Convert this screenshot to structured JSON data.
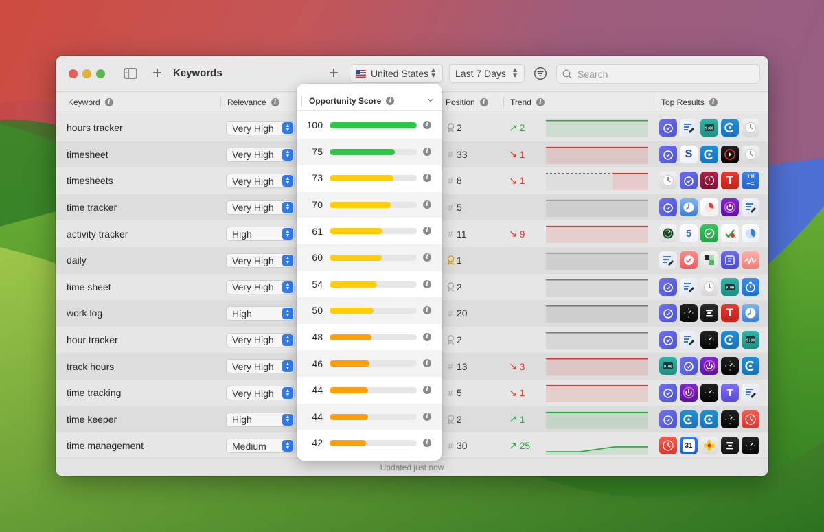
{
  "toolbar": {
    "title": "Keywords",
    "country": "United States",
    "date_range": "Last 7 Days",
    "search_placeholder": "Search"
  },
  "columns": {
    "keyword": "Keyword",
    "relevance": "Relevance",
    "opportunity": "Opportunity Score",
    "position": "Position",
    "trend": "Trend",
    "top_results": "Top Results"
  },
  "colors": {
    "score_high": "#30c748",
    "score_mid": "#ffcd0a",
    "score_low": "#ff9f0a",
    "trend_up": "#2aa742",
    "trend_down": "#e0352b",
    "accent": "#2f7df6"
  },
  "rows": [
    {
      "keyword": "hours tracker",
      "relevance": "Very High",
      "score": "100",
      "score_value": 100,
      "rank_mark": "ribbon",
      "position": "2",
      "trend": "2",
      "trend_dir": "up",
      "spark": {
        "color": "#2aa742",
        "points": [
          0.1,
          0.1,
          0.1,
          0.1
        ]
      },
      "icons": [
        "timer-heart-icon",
        "timesheet-edit-icon",
        "teal-clock-icon",
        "clockify-icon",
        "analog-clock-icon"
      ]
    },
    {
      "keyword": "timesheet",
      "relevance": "Very High",
      "score": "75",
      "score_value": 75,
      "rank_mark": "hash",
      "position": "33",
      "trend": "1",
      "trend_dir": "down",
      "spark": {
        "color": "#e0352b",
        "points": [
          0.1,
          0.1,
          0.1,
          0.1
        ]
      },
      "icons": [
        "timer-heart-icon",
        "hourly-s-icon",
        "clockify-icon",
        "black-play-clock-icon",
        "analog-clock-icon"
      ]
    },
    {
      "keyword": "timesheets",
      "relevance": "Very High",
      "score": "73",
      "score_value": 73,
      "rank_mark": "hash",
      "position": "8",
      "trend": "1",
      "trend_dir": "down",
      "spark": {
        "color": "#e0352b",
        "points": [
          0.1,
          0.1,
          0.1,
          0.1
        ],
        "dashed_until": 0.65
      },
      "icons": [
        "analog-clock-icon",
        "timer-heart-icon",
        "red-clock-icon",
        "t-letter-icon",
        "calculator-icon"
      ]
    },
    {
      "keyword": "time tracker",
      "relevance": "Very High",
      "score": "70",
      "score_value": 70,
      "rank_mark": "hash",
      "position": "5",
      "trend": "",
      "trend_dir": "",
      "spark": {
        "color": "#777777",
        "points": [
          0.1,
          0.1,
          0.1,
          0.1
        ]
      },
      "icons": [
        "timer-heart-icon",
        "blue-clock-icon",
        "pie-timer-icon",
        "power-icon",
        "timesheet-edit-icon"
      ]
    },
    {
      "keyword": "activity tracker",
      "relevance": "High",
      "score": "61",
      "score_value": 61,
      "rank_mark": "hash",
      "position": "11",
      "trend": "9",
      "trend_dir": "down",
      "spark": {
        "color": "#e0352b",
        "points": [
          0.1,
          0.1,
          0.1,
          0.1
        ]
      },
      "icons": [
        "compass-clock-icon",
        "five-icon",
        "green-check-icon",
        "checkmark-heart-icon",
        "pie-chart-icon"
      ]
    },
    {
      "keyword": "daily",
      "relevance": "Very High",
      "score": "60",
      "score_value": 60,
      "rank_mark": "gold-ribbon",
      "position": "1",
      "trend": "",
      "trend_dir": "",
      "spark": {
        "color": "#777777",
        "points": [
          0.1,
          0.1,
          0.1,
          0.1
        ]
      },
      "icons": [
        "timesheet-edit-icon",
        "red-check-icon",
        "green-squares-icon",
        "purple-note-icon",
        "wave-icon"
      ]
    },
    {
      "keyword": "time sheet",
      "relevance": "Very High",
      "score": "54",
      "score_value": 54,
      "rank_mark": "ribbon",
      "position": "2",
      "trend": "",
      "trend_dir": "",
      "spark": {
        "color": "#777777",
        "points": [
          0.1,
          0.1,
          0.1,
          0.1
        ]
      },
      "icons": [
        "timer-heart-icon",
        "timesheet-edit-icon",
        "analog-clock-icon",
        "teal-clock-icon",
        "stopwatch-icon"
      ]
    },
    {
      "keyword": "work log",
      "relevance": "High",
      "score": "50",
      "score_value": 50,
      "rank_mark": "hash",
      "position": "20",
      "trend": "",
      "trend_dir": "",
      "spark": {
        "color": "#777777",
        "points": [
          0.1,
          0.1,
          0.1,
          0.1
        ]
      },
      "icons": [
        "timer-heart-icon",
        "dark-dial-icon",
        "dark-bars-icon",
        "t-letter-icon",
        "blue-clock-icon"
      ]
    },
    {
      "keyword": "hour tracker",
      "relevance": "Very High",
      "score": "48",
      "score_value": 48,
      "rank_mark": "ribbon",
      "position": "2",
      "trend": "",
      "trend_dir": "",
      "spark": {
        "color": "#777777",
        "points": [
          0.1,
          0.1,
          0.1,
          0.1
        ]
      },
      "icons": [
        "timer-heart-icon",
        "timesheet-edit-icon",
        "dark-dial-icon",
        "clockify-icon",
        "teal-clock-icon"
      ]
    },
    {
      "keyword": "track hours",
      "relevance": "Very High",
      "score": "46",
      "score_value": 46,
      "rank_mark": "hash",
      "position": "13",
      "trend": "3",
      "trend_dir": "down",
      "spark": {
        "color": "#e0352b",
        "points": [
          0.1,
          0.1,
          0.1,
          0.1
        ]
      },
      "icons": [
        "teal-clock-icon",
        "timer-heart-icon",
        "power-icon",
        "dark-dial-icon",
        "clockify-icon"
      ]
    },
    {
      "keyword": "time tracking",
      "relevance": "Very High",
      "score": "44",
      "score_value": 44,
      "rank_mark": "hash",
      "position": "5",
      "trend": "1",
      "trend_dir": "down",
      "spark": {
        "color": "#e0352b",
        "points": [
          0.1,
          0.1,
          0.1,
          0.1
        ]
      },
      "icons": [
        "timer-heart-icon",
        "power-icon",
        "dark-dial-icon",
        "purple-t-icon",
        "timesheet-edit-icon"
      ]
    },
    {
      "keyword": "time keeper",
      "relevance": "High",
      "score": "44",
      "score_value": 44,
      "rank_mark": "ribbon",
      "position": "2",
      "trend": "1",
      "trend_dir": "up",
      "spark": {
        "color": "#2aa742",
        "points": [
          0.1,
          0.1,
          0.1,
          0.1
        ]
      },
      "icons": [
        "timer-heart-icon",
        "clockify-icon",
        "clockify-icon",
        "dark-dial-icon",
        "red-clock-face-icon"
      ]
    },
    {
      "keyword": "time management",
      "relevance": "Medium",
      "score": "42",
      "score_value": 42,
      "rank_mark": "hash",
      "position": "30",
      "trend": "25",
      "trend_dir": "up",
      "spark": {
        "color": "#2aa742",
        "points": [
          0.82,
          0.82,
          0.55,
          0.55
        ]
      },
      "icons": [
        "red-clock-face-icon",
        "calendar-31-icon",
        "flower-icon",
        "dark-bars-icon",
        "dark-dial-icon"
      ]
    }
  ],
  "footer": {
    "status": "Updated just now"
  }
}
